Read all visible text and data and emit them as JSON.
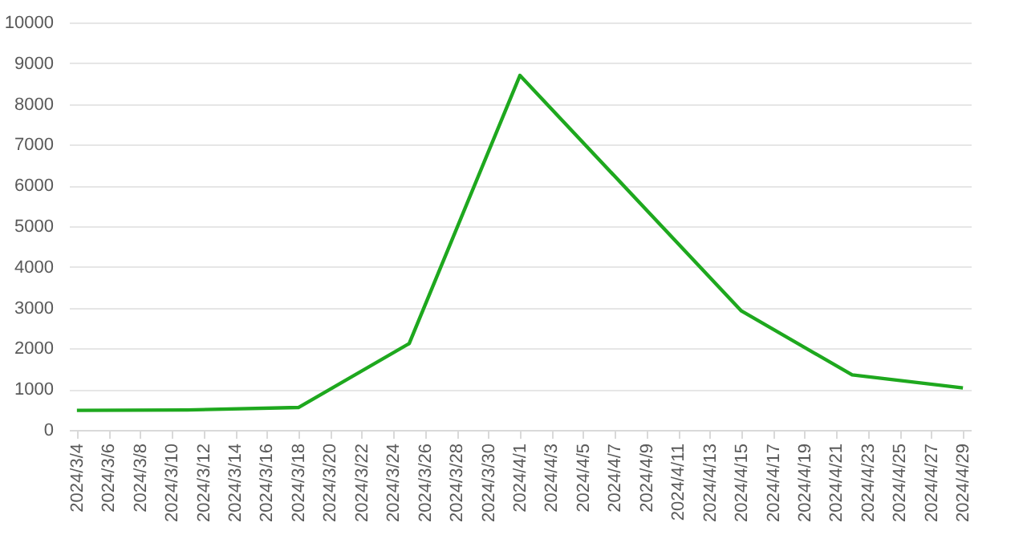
{
  "chart_data": {
    "type": "line",
    "x": [
      "2024-03-04",
      "2024-03-11",
      "2024-03-18",
      "2024-03-25",
      "2024-04-01",
      "2024-04-15",
      "2024-04-22",
      "2024-04-29"
    ],
    "series": [
      {
        "color": "#1ea81e",
        "values": [
          480,
          490,
          550,
          2120,
          8700,
          2920,
          1350,
          1030
        ]
      }
    ],
    "xlim": [
      "2024-03-03T12:00",
      "2024-04-29T12:00"
    ],
    "xticks": [
      {
        "value": "2024-03-04",
        "label": "2024/3/4"
      },
      {
        "value": "2024-03-06",
        "label": "2024/3/6"
      },
      {
        "value": "2024-03-08",
        "label": "2024/3/8"
      },
      {
        "value": "2024-03-10",
        "label": "2024/3/10"
      },
      {
        "value": "2024-03-12",
        "label": "2024/3/12"
      },
      {
        "value": "2024-03-14",
        "label": "2024/3/14"
      },
      {
        "value": "2024-03-16",
        "label": "2024/3/16"
      },
      {
        "value": "2024-03-18",
        "label": "2024/3/18"
      },
      {
        "value": "2024-03-20",
        "label": "2024/3/20"
      },
      {
        "value": "2024-03-22",
        "label": "2024/3/22"
      },
      {
        "value": "2024-03-24",
        "label": "2024/3/24"
      },
      {
        "value": "2024-03-26",
        "label": "2024/3/26"
      },
      {
        "value": "2024-03-28",
        "label": "2024/3/28"
      },
      {
        "value": "2024-03-30",
        "label": "2024/3/30"
      },
      {
        "value": "2024-04-01",
        "label": "2024/4/1"
      },
      {
        "value": "2024-04-03",
        "label": "2024/4/3"
      },
      {
        "value": "2024-04-05",
        "label": "2024/4/5"
      },
      {
        "value": "2024-04-07",
        "label": "2024/4/7"
      },
      {
        "value": "2024-04-09",
        "label": "2024/4/9"
      },
      {
        "value": "2024-04-11",
        "label": "2024/4/11"
      },
      {
        "value": "2024-04-13",
        "label": "2024/4/13"
      },
      {
        "value": "2024-04-15",
        "label": "2024/4/15"
      },
      {
        "value": "2024-04-17",
        "label": "2024/4/17"
      },
      {
        "value": "2024-04-19",
        "label": "2024/4/19"
      },
      {
        "value": "2024-04-21",
        "label": "2024/4/21"
      },
      {
        "value": "2024-04-23",
        "label": "2024/4/23"
      },
      {
        "value": "2024-04-25",
        "label": "2024/4/25"
      },
      {
        "value": "2024-04-27",
        "label": "2024/4/27"
      },
      {
        "value": "2024-04-29",
        "label": "2024/4/29"
      }
    ],
    "ylim": [
      0,
      10000
    ],
    "yticks": [
      0,
      1000,
      2000,
      3000,
      4000,
      5000,
      6000,
      7000,
      8000,
      9000,
      10000
    ],
    "grid": "y",
    "marker": "none",
    "line_style": "solid",
    "legend": false
  }
}
